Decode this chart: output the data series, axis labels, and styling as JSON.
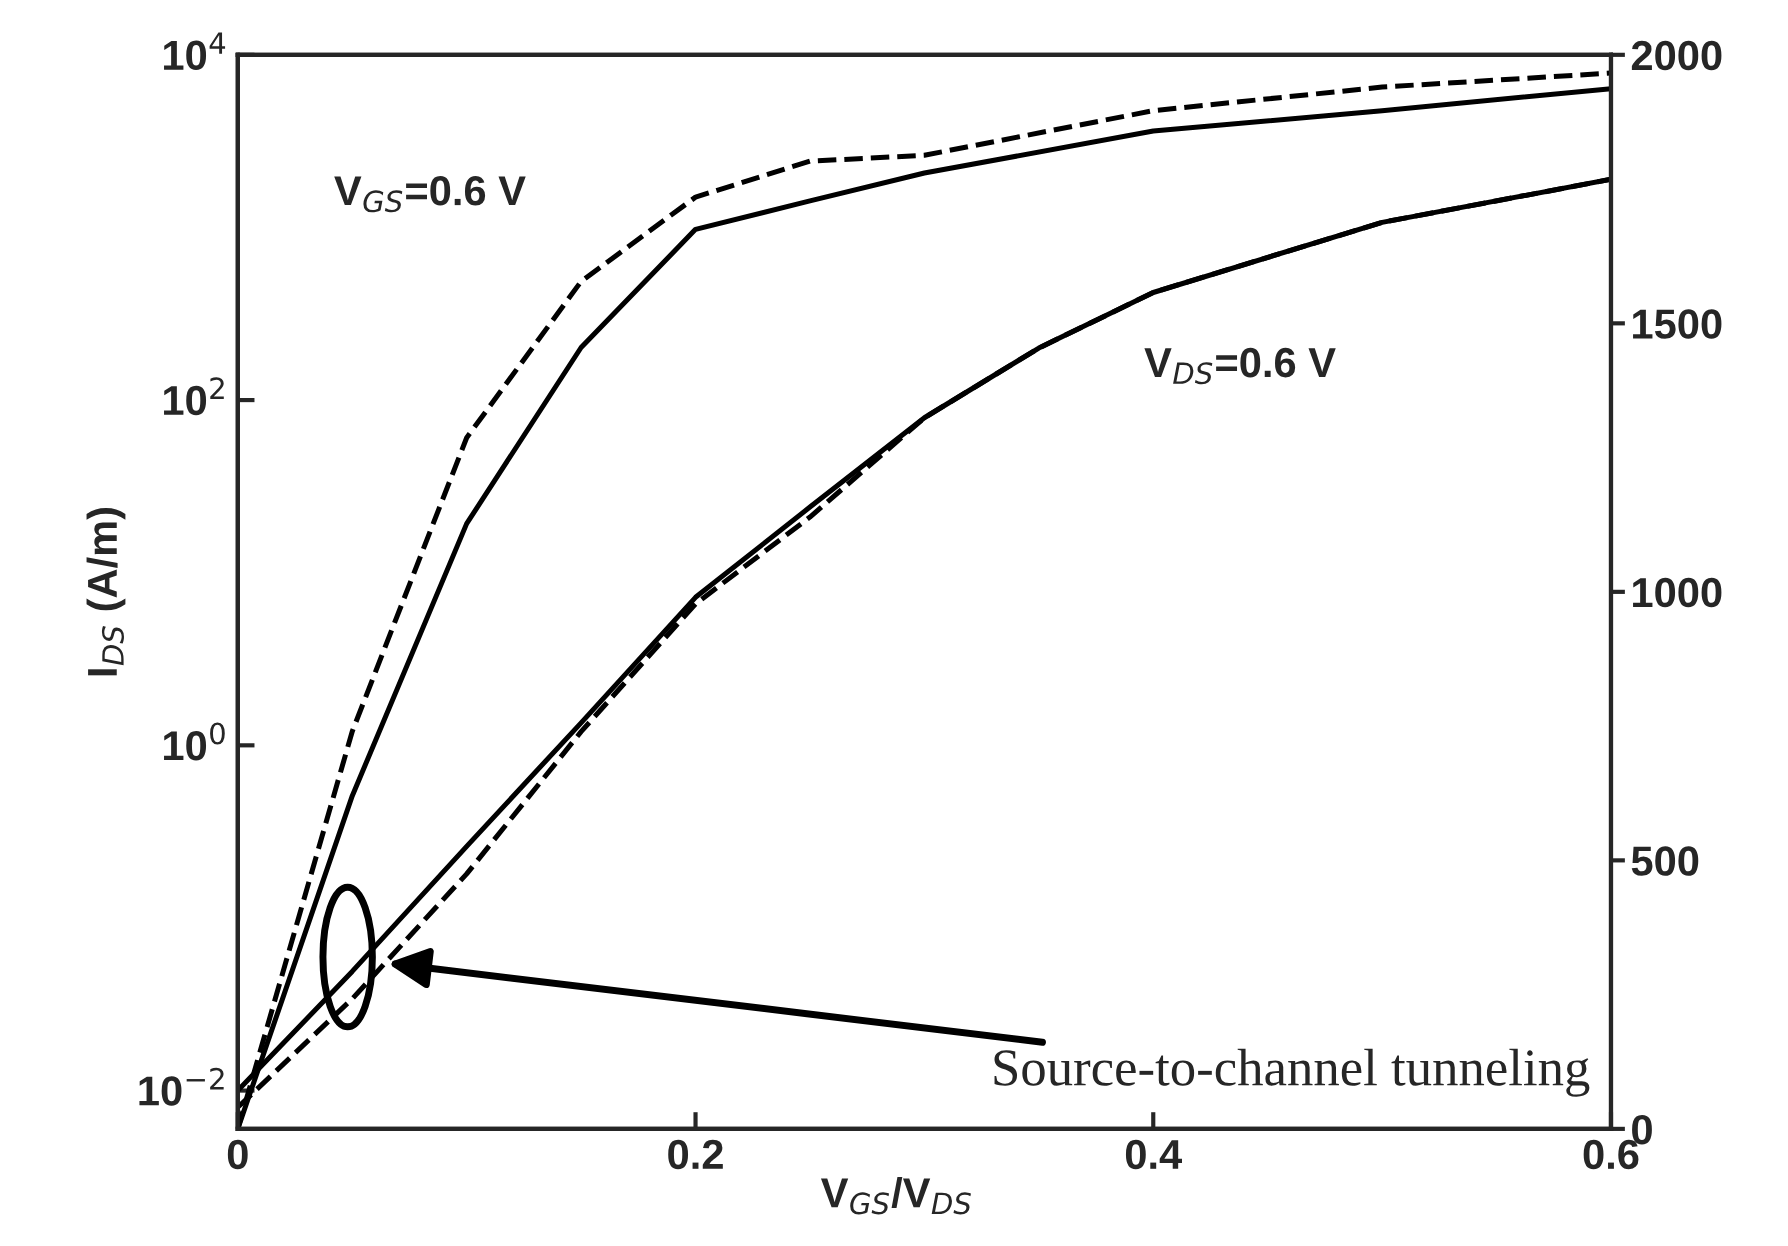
{
  "chart_data": {
    "type": "line",
    "xlabel": "V$_{GS}$/V$_{DS}$",
    "ylabel": "I$_{DS}$ (A/m)",
    "xlim": [
      0,
      0.6
    ],
    "xticks": [
      0,
      0.2,
      0.4,
      0.6
    ],
    "log": "y",
    "ylim": [
      0.006,
      10000
    ],
    "yticks": [
      {
        "value": 0.01,
        "label": "10$^{−2}$"
      },
      {
        "value": 1,
        "label": "10$^{0}$"
      },
      {
        "value": 100,
        "label": "10$^{2}$"
      },
      {
        "value": 10000,
        "label": "10$^{4}$"
      }
    ],
    "y2lim": [
      0,
      2000
    ],
    "y2ticks": [
      0,
      500,
      1000,
      1500,
      2000
    ],
    "grid": false,
    "legend": false,
    "marker": "none",
    "series": [
      {
        "color": "#000000",
        "line_style": "solid",
        "axis": "y2",
        "x": [
          0,
          0.05,
          0.1,
          0.15,
          0.2,
          0.25,
          0.3,
          0.4,
          0.5,
          0.6
        ],
        "values": [
          0,
          620,
          1127,
          1455,
          1675,
          1728,
          1780,
          1858,
          1896,
          1937
        ]
      },
      {
        "color": "#000000",
        "line_style": "dashed",
        "axis": "y2",
        "x": [
          0,
          0.05,
          0.1,
          0.15,
          0.2,
          0.25,
          0.3,
          0.4,
          0.5,
          0.6
        ],
        "values": [
          0,
          740,
          1287,
          1578,
          1735,
          1802,
          1813,
          1896,
          1940,
          1966
        ]
      },
      {
        "color": "#000000",
        "line_style": "solid",
        "x": [
          0,
          0.05,
          0.1,
          0.15,
          0.2,
          0.25,
          0.3,
          0.35,
          0.4,
          0.5,
          0.6
        ],
        "values": [
          0.01,
          0.049,
          0.26,
          1.35,
          7.2,
          24,
          79,
          200,
          420,
          1070,
          1900
        ]
      },
      {
        "color": "#000000",
        "line_style": "dashed",
        "x": [
          0,
          0.05,
          0.1,
          0.15,
          0.2,
          0.25,
          0.3,
          0.35,
          0.4,
          0.5,
          0.6
        ],
        "values": [
          0.008,
          0.034,
          0.18,
          1.2,
          6.6,
          21,
          79,
          200,
          420,
          1070,
          1900
        ]
      }
    ],
    "annotations": [
      "V$_{GS}$=0.6 V",
      "V$_{DS}$=0.6 V",
      "Source-to-channel tunneling"
    ]
  }
}
